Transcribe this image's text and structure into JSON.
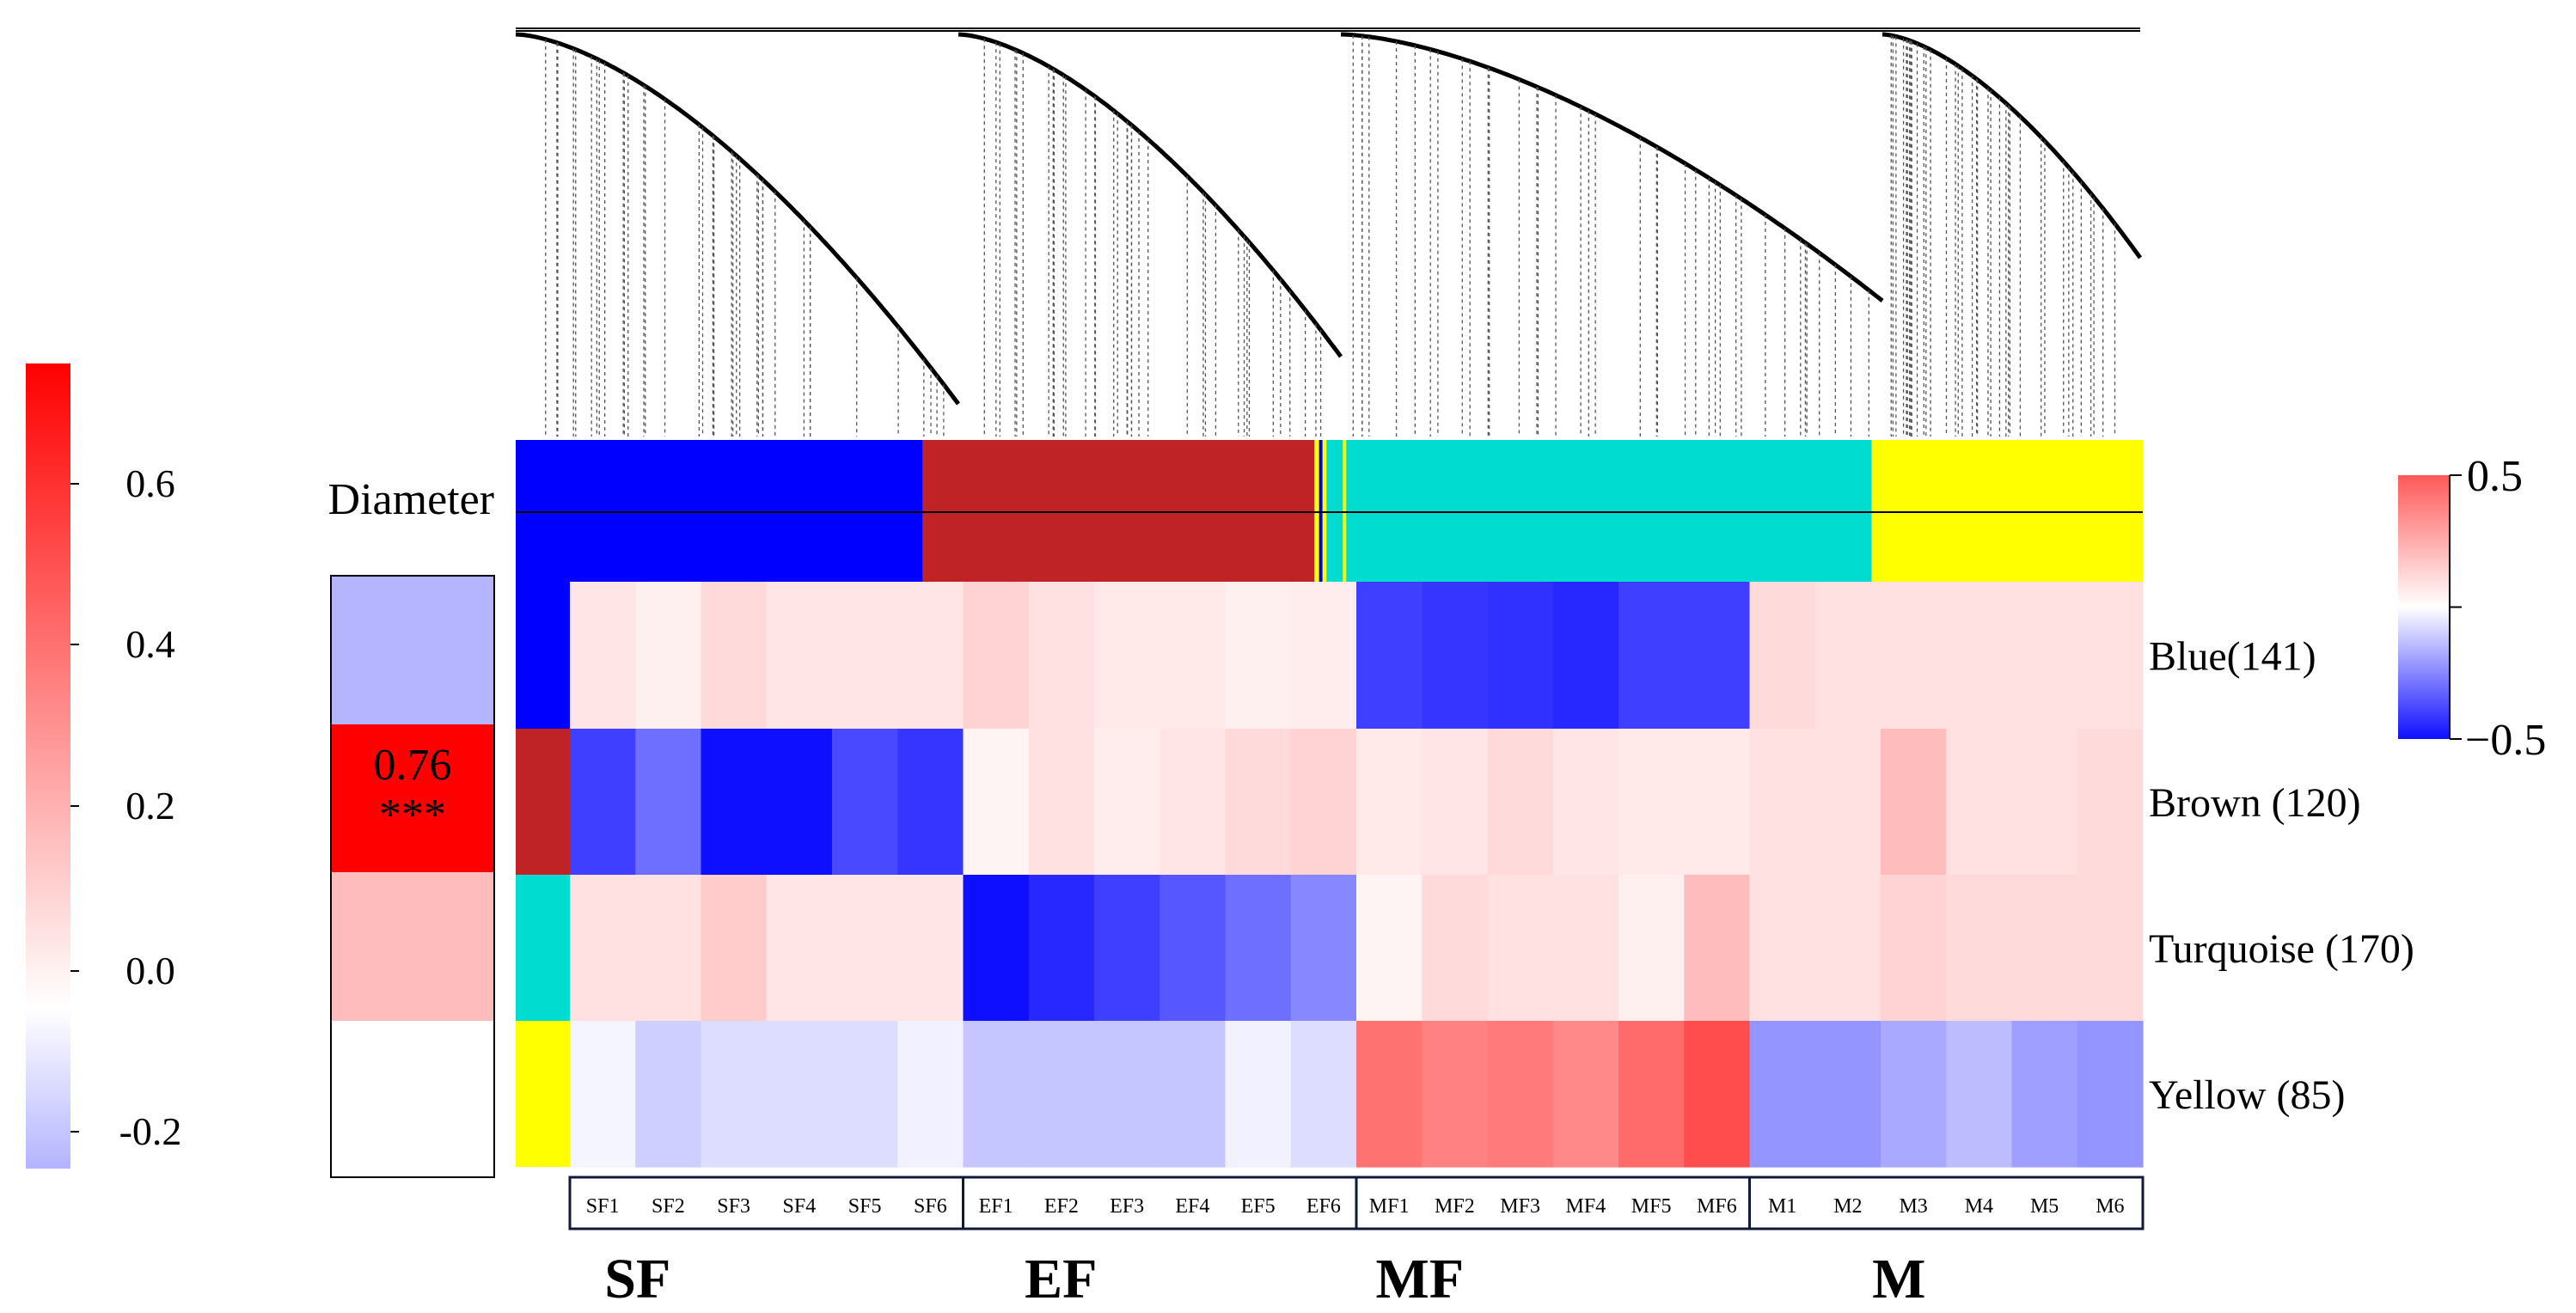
{
  "chart_data": {
    "type": "heatmap",
    "title": "",
    "trait_label": "Diameter",
    "modules": [
      "Blue(141)",
      "Brown (120)",
      "Turquoise (170)",
      "Yellow (85)"
    ],
    "module_colors": [
      "#0000ff",
      "#bf2326",
      "#00ddd0",
      "#ffff00"
    ],
    "samples": [
      "SF1",
      "SF2",
      "SF3",
      "SF4",
      "SF5",
      "SF6",
      "EF1",
      "EF2",
      "EF3",
      "EF4",
      "EF5",
      "EF6",
      "MF1",
      "MF2",
      "MF3",
      "MF4",
      "MF5",
      "MF6",
      "M1",
      "M2",
      "M3",
      "M4",
      "M5",
      "M6"
    ],
    "groups": [
      "SF",
      "EF",
      "MF",
      "M"
    ],
    "expression_values": [
      [
        0.07,
        0.04,
        0.1,
        0.07,
        0.07,
        0.07,
        0.12,
        0.08,
        0.06,
        0.06,
        0.04,
        0.05,
        -0.4,
        -0.42,
        -0.43,
        -0.45,
        -0.4,
        -0.4,
        0.1,
        0.08,
        0.08,
        0.08,
        0.08,
        0.08
      ],
      [
        -0.4,
        -0.3,
        -0.52,
        -0.52,
        -0.38,
        -0.42,
        0.03,
        0.08,
        0.05,
        0.07,
        0.1,
        0.12,
        0.06,
        0.07,
        0.1,
        0.07,
        0.06,
        0.06,
        0.08,
        0.08,
        0.18,
        0.08,
        0.08,
        0.1
      ],
      [
        0.08,
        0.08,
        0.14,
        0.07,
        0.07,
        0.07,
        -0.58,
        -0.45,
        -0.4,
        -0.35,
        -0.3,
        -0.25,
        0.03,
        0.1,
        0.08,
        0.08,
        0.04,
        0.18,
        0.08,
        0.08,
        0.12,
        0.1,
        0.1,
        0.1
      ],
      [
        -0.02,
        -0.1,
        -0.07,
        -0.07,
        -0.07,
        -0.03,
        -0.12,
        -0.12,
        -0.12,
        -0.12,
        -0.03,
        -0.07,
        0.38,
        0.34,
        0.36,
        0.32,
        0.4,
        0.48,
        -0.22,
        -0.22,
        -0.18,
        -0.14,
        -0.2,
        -0.22
      ]
    ],
    "expression_colorbar": {
      "ticks": [
        "0.5",
        "−0.5"
      ],
      "range": [
        -0.5,
        0.5
      ]
    },
    "trait_correlation": {
      "values": [
        -0.2,
        0.76,
        0.2,
        0.0
      ],
      "annotations": [
        "",
        "0.76\n***",
        "",
        ""
      ]
    },
    "correlation_colorbar": {
      "ticks": [
        "0.6",
        "0.4",
        "0.2",
        "0.0",
        "-0.2"
      ],
      "range": [
        -0.2,
        0.76
      ]
    },
    "diameter_bar_segments": [
      {
        "color": "#0000ff",
        "from": 0.0,
        "to": 6.0
      },
      {
        "color": "#bf2326",
        "from": 6.0,
        "to": 11.78
      },
      {
        "color": "#ffff00",
        "from": 11.78,
        "to": 11.85
      },
      {
        "color": "#0000ff",
        "from": 11.85,
        "to": 11.9
      },
      {
        "color": "#ffff00",
        "from": 11.9,
        "to": 11.96
      },
      {
        "color": "#00ddd0",
        "from": 11.96,
        "to": 12.2
      },
      {
        "color": "#ffff00",
        "from": 12.2,
        "to": 12.25
      },
      {
        "color": "#00ddd0",
        "from": 12.25,
        "to": 20.0
      },
      {
        "color": "#ffff00",
        "from": 20.0,
        "to": 24.0
      }
    ]
  }
}
